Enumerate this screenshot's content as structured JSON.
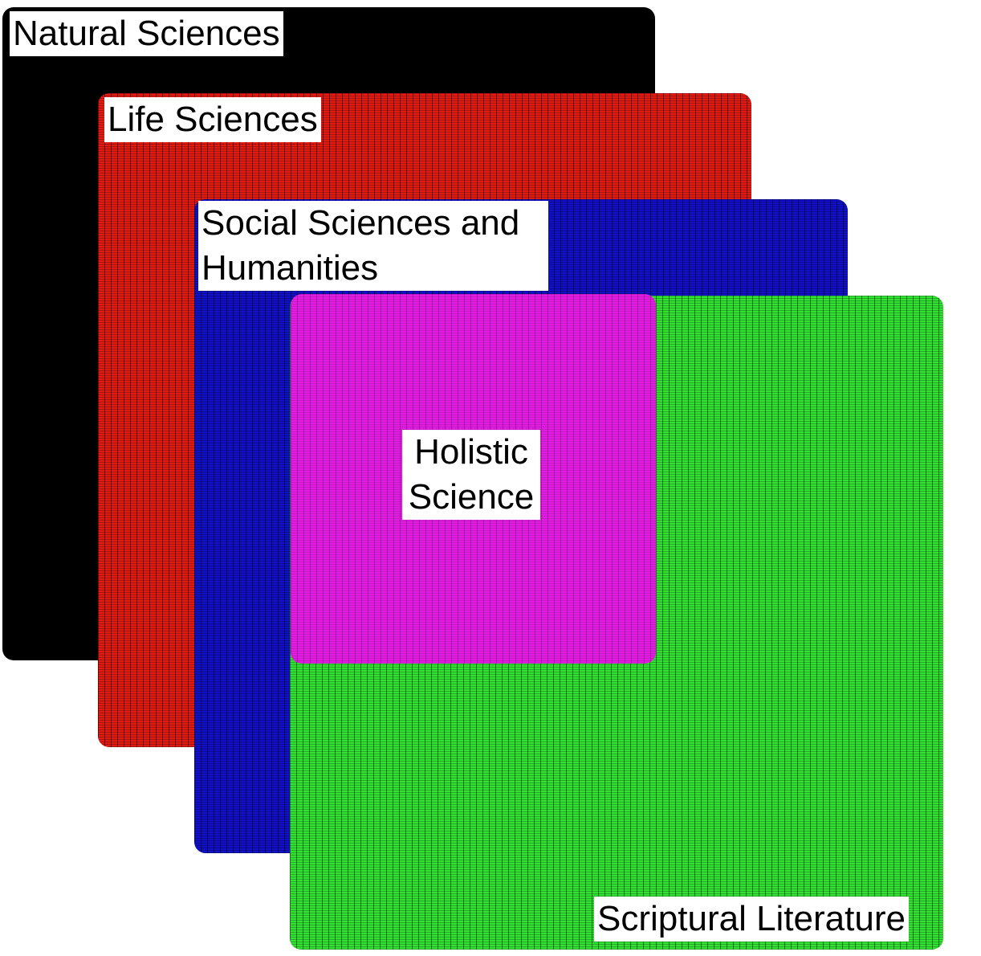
{
  "diagram": {
    "regions": [
      {
        "id": "natural",
        "label": "Natural Sciences",
        "color": "#000000"
      },
      {
        "id": "life",
        "label": "Life Sciences",
        "color": "#e31a12"
      },
      {
        "id": "social",
        "label": "Social Sciences and Humanities",
        "color": "#1010c8"
      },
      {
        "id": "scriptural",
        "label": "Scriptural Literature",
        "color": "#33e133"
      },
      {
        "id": "holistic",
        "label": "Holistic Science",
        "color": "#e21de2"
      }
    ]
  }
}
